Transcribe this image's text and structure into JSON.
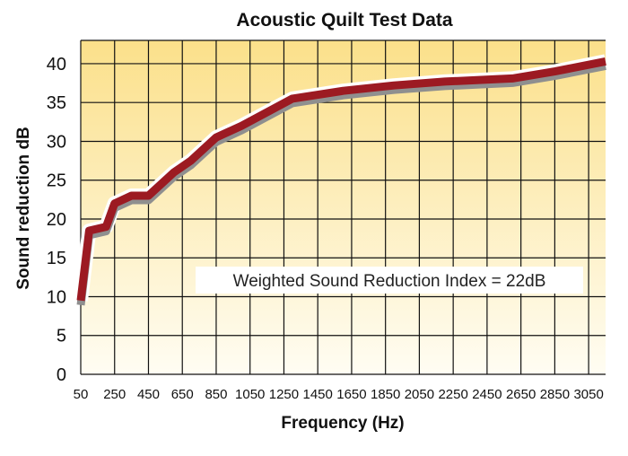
{
  "chart_data": {
    "type": "line",
    "title": "Acoustic Quilt Test Data",
    "xlabel": "Frequency (Hz)",
    "ylabel": "Sound reduction dB",
    "x_ticks": [
      "50",
      "250",
      "450",
      "650",
      "850",
      "1050",
      "1250",
      "1450",
      "1650",
      "1850",
      "2050",
      "2250",
      "2450",
      "2650",
      "2850",
      "3050"
    ],
    "y_ticks": [
      "0",
      "5",
      "10",
      "15",
      "20",
      "25",
      "30",
      "35",
      "40"
    ],
    "xlim": [
      50,
      3150
    ],
    "ylim": [
      0,
      43
    ],
    "grid": true,
    "annotation": "Weighted Sound Reduction Index = 22dB",
    "line_color": "#9c1a22",
    "shadow_color": "#8f8f8f",
    "background_gradient": [
      "#fbe08a",
      "#fffdf3"
    ],
    "series": [
      {
        "x": [
          50,
          100,
          200,
          250,
          350,
          400,
          450,
          600,
          700,
          850,
          1000,
          1300,
          1600,
          1900,
          2200,
          2500,
          2600,
          2850,
          3150
        ],
        "values": [
          9.5,
          18.5,
          19,
          22,
          23,
          23,
          23,
          26,
          27.5,
          30.5,
          32,
          35.5,
          36.5,
          37.2,
          37.7,
          38,
          38.1,
          39,
          40.3
        ]
      }
    ]
  }
}
